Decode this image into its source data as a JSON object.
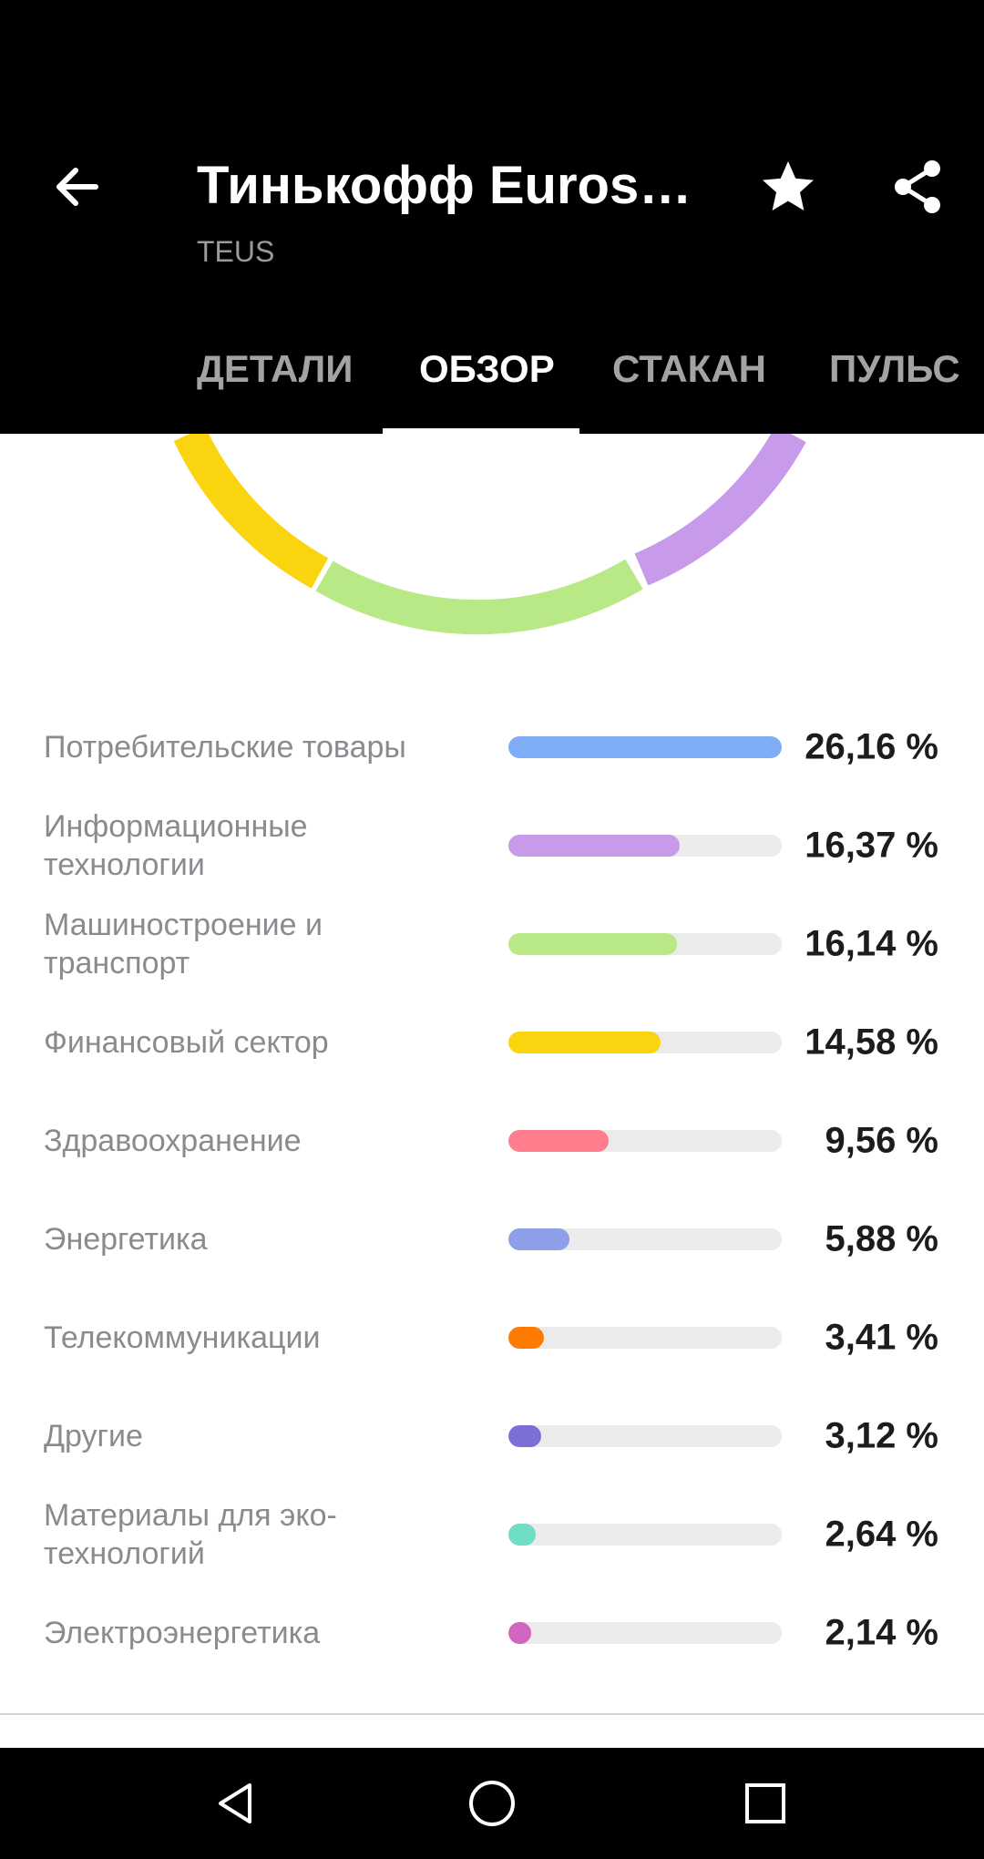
{
  "header": {
    "title": "Тинькофф Eurostoxx",
    "ticker": "TEUS"
  },
  "tabs": [
    {
      "label": "ДЕТАЛИ",
      "active": false
    },
    {
      "label": "ОБЗОР",
      "active": true
    },
    {
      "label": "СТАКАН",
      "active": false
    },
    {
      "label": "ПУЛЬС",
      "active": false
    }
  ],
  "chart_data": {
    "type": "bar",
    "categories": [
      "Потребительские товары",
      "Информационные технологии",
      "Машиностроение и транспорт",
      "Финансовый сектор",
      "Здравоохранение",
      "Энергетика",
      "Телекоммуникации",
      "Другие",
      "Материалы для эко-технологий",
      "Электроэнергетика"
    ],
    "values": [
      26.16,
      16.37,
      16.14,
      14.58,
      9.56,
      5.88,
      3.41,
      3.12,
      2.64,
      2.14
    ],
    "value_labels": [
      "26,16 %",
      "16,37 %",
      "16,14 %",
      "14,58 %",
      "9,56 %",
      "5,88 %",
      "3,41 %",
      "3,12 %",
      "2,64 %",
      "2,14 %"
    ],
    "colors": [
      "#7fadf5",
      "#c89bea",
      "#b8e986",
      "#fad40f",
      "#ff7d8c",
      "#8c9fe8",
      "#ff7a00",
      "#7b6fd6",
      "#6fdcc5",
      "#d165c0"
    ],
    "max_value": 26.16,
    "donut_visible_segments": [
      {
        "name": "Финансовый сектор",
        "color": "#fad40f"
      },
      {
        "name": "Машиностроение и транспорт",
        "color": "#b8e986"
      },
      {
        "name": "Информационные технологии",
        "color": "#c89bea"
      }
    ]
  },
  "icons": {
    "back": "arrow-left-icon",
    "favorite": "star-icon",
    "share": "share-icon",
    "nav_back": "triangle-back-icon",
    "nav_home": "circle-home-icon",
    "nav_recents": "square-recents-icon"
  }
}
